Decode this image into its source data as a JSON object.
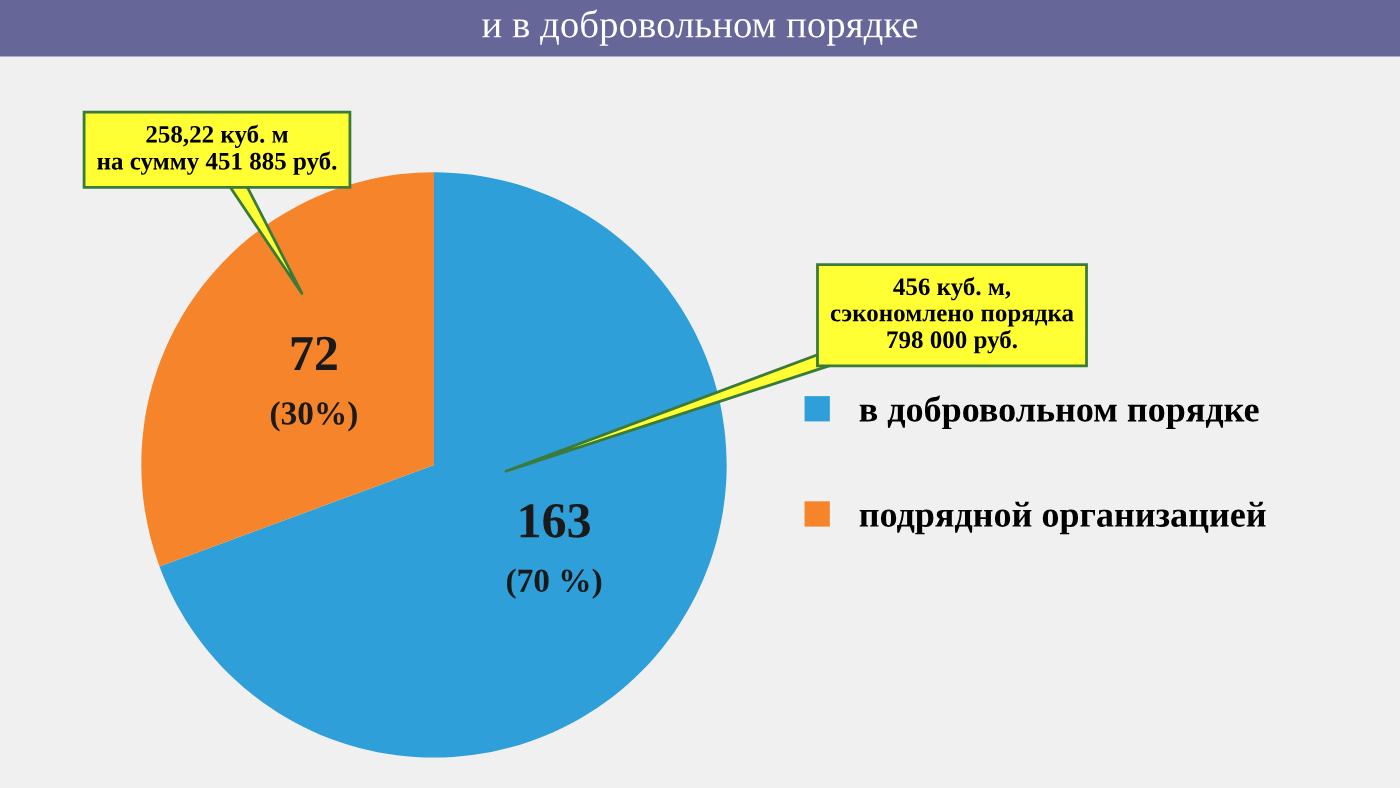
{
  "chart_data": {
    "type": "pie",
    "title": "и в добровольном порядке",
    "categories": [
      "в добровольном порядке",
      "подрядной организацией"
    ],
    "values": [
      163,
      72
    ],
    "colors": [
      "#2e9fd9",
      "#f5842a"
    ],
    "value_labels": [
      "163\n(70 %)",
      "72\n(30%)"
    ],
    "annotations": [
      "258,22 куб. м\nна сумму 451 885 руб.",
      "456 куб. м,\nсэкономлено порядка\n798 000 руб."
    ],
    "legend": "right"
  }
}
